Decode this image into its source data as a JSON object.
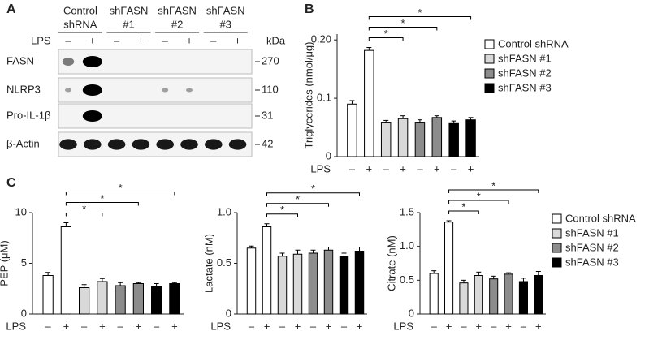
{
  "blot": {
    "panel": "A",
    "columns": [
      [
        "Control",
        "shRNA"
      ],
      [
        "shFASN",
        "#1"
      ],
      [
        "shFASN",
        "#2"
      ],
      [
        "shFASN",
        "#3"
      ]
    ],
    "lps_label": "LPS",
    "lps": [
      "–",
      "+"
    ],
    "mw_unit": "kDa",
    "rows": [
      {
        "label": "FASN",
        "mw": 270
      },
      {
        "label": "NLRP3",
        "mw": 110
      },
      {
        "label": "Pro-IL-1β",
        "mw": 31
      },
      {
        "label": "β-Actin",
        "mw": 42
      }
    ]
  },
  "chart_data": [
    {
      "type": "bar",
      "panel": "B",
      "ylabel": "Triglycerides (nmol/μg)",
      "xlabel": "LPS",
      "categories": [
        "–",
        "+"
      ],
      "ylim": [
        0,
        0.21
      ],
      "yticks": [
        0,
        0.1,
        {
          "value": 0.2,
          "label": "0.20"
        }
      ],
      "legend": true,
      "series": [
        {
          "name": "Control shRNA",
          "color": "#ffffff",
          "values": [
            0.09,
            0.182
          ],
          "errors": [
            0.006,
            0.005
          ]
        },
        {
          "name": "shFASN #1",
          "color": "#d9d9d9",
          "values": [
            0.059,
            0.065
          ],
          "errors": [
            0.003,
            0.005
          ]
        },
        {
          "name": "shFASN #2",
          "color": "#8c8c8c",
          "values": [
            0.059,
            0.067
          ],
          "errors": [
            0.004,
            0.003
          ]
        },
        {
          "name": "shFASN #3",
          "color": "#000000",
          "values": [
            0.058,
            0.063
          ],
          "errors": [
            0.003,
            0.004
          ]
        }
      ],
      "significance": [
        {
          "label": "*",
          "between": [
            "Control shRNA",
            "shFASN #1"
          ]
        },
        {
          "label": "*",
          "between": [
            "Control shRNA",
            "shFASN #2"
          ]
        },
        {
          "label": "*",
          "between": [
            "Control shRNA",
            "shFASN #3"
          ]
        }
      ]
    },
    {
      "type": "bar",
      "panel": "C",
      "ylabel": "PEP (μM)",
      "xlabel": "LPS",
      "categories": [
        "–",
        "+"
      ],
      "ylim": [
        0,
        10
      ],
      "yticks": [
        0,
        5,
        10
      ],
      "legend": false,
      "series": [
        {
          "name": "Control shRNA",
          "color": "#ffffff",
          "values": [
            3.8,
            8.6
          ],
          "errors": [
            0.3,
            0.4
          ]
        },
        {
          "name": "shFASN #1",
          "color": "#d9d9d9",
          "values": [
            2.6,
            3.2
          ],
          "errors": [
            0.3,
            0.3
          ]
        },
        {
          "name": "shFASN #2",
          "color": "#8c8c8c",
          "values": [
            2.8,
            3.0
          ],
          "errors": [
            0.3,
            0.1
          ]
        },
        {
          "name": "shFASN #3",
          "color": "#000000",
          "values": [
            2.7,
            3.0
          ],
          "errors": [
            0.3,
            0.1
          ]
        }
      ],
      "significance": [
        {
          "label": "*",
          "between": [
            "Control shRNA",
            "shFASN #1"
          ]
        },
        {
          "label": "*",
          "between": [
            "Control shRNA",
            "shFASN #2"
          ]
        },
        {
          "label": "*",
          "between": [
            "Control shRNA",
            "shFASN #3"
          ]
        }
      ]
    },
    {
      "type": "bar",
      "ylabel": "Lactate (nM)",
      "xlabel": "LPS",
      "categories": [
        "–",
        "+"
      ],
      "ylim": [
        0,
        1
      ],
      "yticks": [
        0,
        0.5,
        {
          "value": 1,
          "label": "1.0"
        }
      ],
      "legend": false,
      "series": [
        {
          "name": "Control shRNA",
          "color": "#ffffff",
          "values": [
            0.65,
            0.86
          ],
          "errors": [
            0.02,
            0.03
          ]
        },
        {
          "name": "shFASN #1",
          "color": "#d9d9d9",
          "values": [
            0.57,
            0.59
          ],
          "errors": [
            0.03,
            0.04
          ]
        },
        {
          "name": "shFASN #2",
          "color": "#8c8c8c",
          "values": [
            0.6,
            0.63
          ],
          "errors": [
            0.03,
            0.03
          ]
        },
        {
          "name": "shFASN #3",
          "color": "#000000",
          "values": [
            0.57,
            0.62
          ],
          "errors": [
            0.03,
            0.04
          ]
        }
      ],
      "significance": [
        {
          "label": "*",
          "between": [
            "Control shRNA",
            "shFASN #1"
          ]
        },
        {
          "label": "*",
          "between": [
            "Control shRNA",
            "shFASN #2"
          ]
        },
        {
          "label": "*",
          "between": [
            "Control shRNA",
            "shFASN #3"
          ]
        }
      ]
    },
    {
      "type": "bar",
      "ylabel": "Citrate (nM)",
      "xlabel": "LPS",
      "categories": [
        "–",
        "+"
      ],
      "ylim": [
        0,
        1.5
      ],
      "yticks": [
        0,
        0.5,
        {
          "value": 1,
          "label": "1.0"
        },
        1.5
      ],
      "legend": true,
      "series": [
        {
          "name": "Control shRNA",
          "color": "#ffffff",
          "values": [
            0.6,
            1.36
          ],
          "errors": [
            0.04,
            0.02
          ]
        },
        {
          "name": "shFASN #1",
          "color": "#d9d9d9",
          "values": [
            0.46,
            0.57
          ],
          "errors": [
            0.04,
            0.05
          ]
        },
        {
          "name": "shFASN #2",
          "color": "#8c8c8c",
          "values": [
            0.52,
            0.59
          ],
          "errors": [
            0.04,
            0.02
          ]
        },
        {
          "name": "shFASN #3",
          "color": "#000000",
          "values": [
            0.48,
            0.57
          ],
          "errors": [
            0.05,
            0.06
          ]
        }
      ],
      "significance": [
        {
          "label": "*",
          "between": [
            "Control shRNA",
            "shFASN #1"
          ]
        },
        {
          "label": "*",
          "between": [
            "Control shRNA",
            "shFASN #2"
          ]
        },
        {
          "label": "*",
          "between": [
            "Control shRNA",
            "shFASN #3"
          ]
        }
      ]
    }
  ]
}
